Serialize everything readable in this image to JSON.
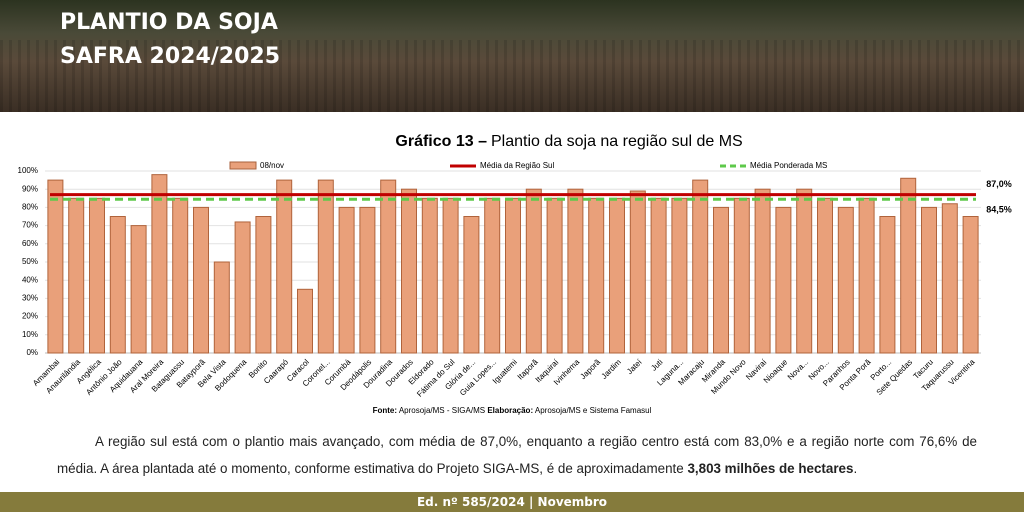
{
  "header": {
    "title_lines": [
      "PLANTIO DA SOJA",
      "SAFRA 2024/2025"
    ]
  },
  "chart_data": {
    "type": "bar",
    "title_label": "Gráfico 13 –",
    "title": "Plantio da soja na região sul de MS",
    "categories": [
      "Amambai",
      "Anaurilândia",
      "Angélica",
      "Antônio João",
      "Aquidauana",
      "Aral Moreira",
      "Bataguassu",
      "Batayporã",
      "Bela Vista",
      "Bodoquena",
      "Bonito",
      "Caarapó",
      "Caracol",
      "Coronel...",
      "Corumbá",
      "Deodápolis",
      "Douradina",
      "Dourados",
      "Eldorado",
      "Fátima do Sul",
      "Glória de...",
      "Guia Lopes...",
      "Iguatemi",
      "Itaporã",
      "Itaquiraí",
      "Ivinhema",
      "Japorã",
      "Jardim",
      "Jateí",
      "Juti",
      "Laguna...",
      "Maracaju",
      "Miranda",
      "Mundo Novo",
      "Naviraí",
      "Nioaque",
      "Nova...",
      "Novo...",
      "Paranhos",
      "Ponta Porã",
      "Porto...",
      "Sete Quedas",
      "Tacuru",
      "Taquarussu",
      "Vicentina"
    ],
    "series": [
      {
        "name": "08/nov",
        "color": "#e9a07a",
        "values": [
          95,
          85,
          85,
          75,
          70,
          98,
          85,
          80,
          50,
          72,
          75,
          95,
          35,
          95,
          80,
          80,
          95,
          90,
          85,
          85,
          75,
          85,
          85,
          90,
          85,
          90,
          85,
          85,
          89,
          85,
          85,
          95,
          80,
          85,
          90,
          80,
          90,
          85,
          80,
          85,
          75,
          96,
          80,
          82,
          75
        ]
      }
    ],
    "reference_lines": [
      {
        "name": "Média da Região Sul",
        "value": 87.0,
        "value_label": "87,0%",
        "color": "#c00000",
        "style": "solid"
      },
      {
        "name": "Média Ponderada MS",
        "value": 84.5,
        "value_label": "84,5%",
        "color": "#5ec94a",
        "style": "dashed"
      }
    ],
    "ylim": [
      0,
      100
    ],
    "yticks": [
      {
        "value": 0,
        "label": "0%"
      },
      {
        "value": 10,
        "label": "10%"
      },
      {
        "value": 20,
        "label": "20%"
      },
      {
        "value": 30,
        "label": "30%"
      },
      {
        "value": 40,
        "label": "40%"
      },
      {
        "value": 50,
        "label": "50%"
      },
      {
        "value": 60,
        "label": "60%"
      },
      {
        "value": 70,
        "label": "70%"
      },
      {
        "value": 80,
        "label": "80%"
      },
      {
        "value": 90,
        "label": "90%"
      },
      {
        "value": 100,
        "label": "100%"
      }
    ],
    "grid": true,
    "source": {
      "label": "Fonte:",
      "text": "Aprosoja/MS - SIGA/MS",
      "label2": "Elaboração:",
      "text2": "Aprosoja/MS  e Sistema Famasul"
    }
  },
  "body": {
    "paragraph": [
      "A região sul está com o plantio mais avançado, com média de 87,0%, enquanto a região centro está com 83,0% e a região norte com 76,6% de média. A área plantada até o momento, conforme estimativa do Projeto SIGA-MS, é de aproximadamente ",
      "3,803 milhões de hectares",
      "."
    ]
  },
  "footer": {
    "text": "Ed. nº 585/2024 | Novembro"
  }
}
